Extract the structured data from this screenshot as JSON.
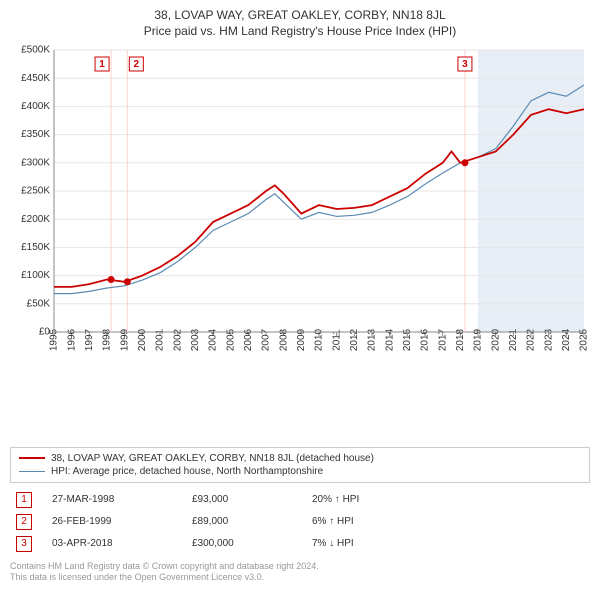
{
  "title": "38, LOVAP WAY, GREAT OAKLEY, CORBY, NN18 8JL",
  "subtitle": "Price paid vs. HM Land Registry's House Price Index (HPI)",
  "chart": {
    "type": "line",
    "background_color": "#ffffff",
    "grid_color": "#e6e6e6",
    "band_color": "#e8eef5",
    "band_start_year": 2019,
    "band_end_year": 2025,
    "xlim": [
      1995,
      2025
    ],
    "ylim": [
      0,
      500000
    ],
    "ytick_step": 50000,
    "y_ticks": [
      "£0",
      "£50K",
      "£100K",
      "£150K",
      "£200K",
      "£250K",
      "£300K",
      "£350K",
      "£400K",
      "£450K",
      "£500K"
    ],
    "x_ticks": [
      1995,
      1996,
      1997,
      1998,
      1999,
      2000,
      2001,
      2002,
      2003,
      2004,
      2005,
      2006,
      2007,
      2008,
      2009,
      2010,
      2011,
      2012,
      2013,
      2014,
      2015,
      2016,
      2017,
      2018,
      2019,
      2020,
      2021,
      2022,
      2023,
      2024,
      2025
    ],
    "series": [
      {
        "name": "38, LOVAP WAY, GREAT OAKLEY, CORBY, NN18 8JL (detached house)",
        "color": "#cc0000",
        "line_width": 1.8,
        "data": [
          [
            1995,
            80000
          ],
          [
            1996,
            80000
          ],
          [
            1997,
            85000
          ],
          [
            1998,
            93000
          ],
          [
            1999,
            89000
          ],
          [
            2000,
            100000
          ],
          [
            2001,
            115000
          ],
          [
            2002,
            135000
          ],
          [
            2003,
            160000
          ],
          [
            2004,
            195000
          ],
          [
            2005,
            210000
          ],
          [
            2006,
            225000
          ],
          [
            2007,
            250000
          ],
          [
            2007.5,
            260000
          ],
          [
            2008,
            245000
          ],
          [
            2009,
            210000
          ],
          [
            2010,
            225000
          ],
          [
            2011,
            218000
          ],
          [
            2012,
            220000
          ],
          [
            2013,
            225000
          ],
          [
            2014,
            240000
          ],
          [
            2015,
            255000
          ],
          [
            2016,
            280000
          ],
          [
            2017,
            300000
          ],
          [
            2017.5,
            320000
          ],
          [
            2018,
            300000
          ],
          [
            2019,
            310000
          ],
          [
            2020,
            320000
          ],
          [
            2021,
            350000
          ],
          [
            2022,
            385000
          ],
          [
            2023,
            395000
          ],
          [
            2024,
            388000
          ],
          [
            2025,
            395000
          ]
        ]
      },
      {
        "name": "HPI: Average price, detached house, North Northamptonshire",
        "color": "#5b8bb5",
        "line_width": 1.2,
        "data": [
          [
            1995,
            68000
          ],
          [
            1996,
            68000
          ],
          [
            1997,
            72000
          ],
          [
            1998,
            78000
          ],
          [
            1999,
            82000
          ],
          [
            2000,
            92000
          ],
          [
            2001,
            105000
          ],
          [
            2002,
            125000
          ],
          [
            2003,
            150000
          ],
          [
            2004,
            180000
          ],
          [
            2005,
            195000
          ],
          [
            2006,
            210000
          ],
          [
            2007,
            235000
          ],
          [
            2007.5,
            245000
          ],
          [
            2008,
            230000
          ],
          [
            2009,
            200000
          ],
          [
            2010,
            212000
          ],
          [
            2011,
            205000
          ],
          [
            2012,
            207000
          ],
          [
            2013,
            212000
          ],
          [
            2014,
            225000
          ],
          [
            2015,
            240000
          ],
          [
            2016,
            262000
          ],
          [
            2017,
            282000
          ],
          [
            2018,
            300000
          ],
          [
            2019,
            310000
          ],
          [
            2020,
            325000
          ],
          [
            2021,
            365000
          ],
          [
            2022,
            410000
          ],
          [
            2023,
            425000
          ],
          [
            2024,
            418000
          ],
          [
            2025,
            438000
          ]
        ]
      }
    ],
    "sale_markers": [
      {
        "id": "1",
        "year": 1998.23,
        "price": 93000
      },
      {
        "id": "2",
        "year": 1999.15,
        "price": 89000
      },
      {
        "id": "3",
        "year": 2018.26,
        "price": 300000
      }
    ],
    "marker_point_color": "#cc0000",
    "marker_line_color": "#ffd0d0",
    "marker_box_border": "#cc0000",
    "marker_box_bg": "#ffffff",
    "tick_font_size": 10
  },
  "legend": {
    "s0": "38, LOVAP WAY, GREAT OAKLEY, CORBY, NN18 8JL (detached house)",
    "s1": "HPI: Average price, detached house, North Northamptonshire"
  },
  "sales": [
    {
      "id": "1",
      "date": "27-MAR-1998",
      "price": "£93,000",
      "delta": "20% ↑ HPI"
    },
    {
      "id": "2",
      "date": "26-FEB-1999",
      "price": "£89,000",
      "delta": "6% ↑ HPI"
    },
    {
      "id": "3",
      "date": "03-APR-2018",
      "price": "£300,000",
      "delta": "7% ↓ HPI"
    }
  ],
  "footnote1": "Contains HM Land Registry data © Crown copyright and database right 2024.",
  "footnote2": "This data is licensed under the Open Government Licence v3.0."
}
